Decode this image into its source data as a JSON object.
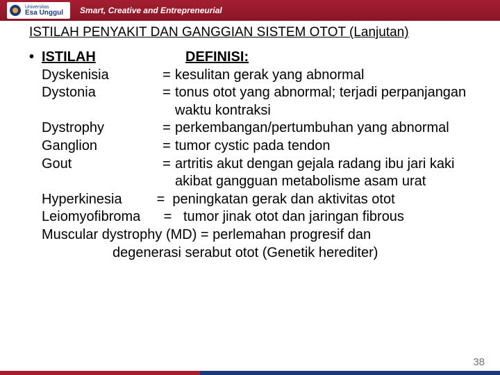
{
  "header": {
    "university_top": "Universitas",
    "university_name": "Esa Unggul",
    "tagline": "Smart, Creative and Entrepreneurial"
  },
  "title": "ISTILAH PENYAKIT DAN GANGGIAN SISTEM OTOT (Lanjutan)",
  "columns": {
    "term": "ISTILAH",
    "def": "DEFINISI:"
  },
  "rows": [
    {
      "term": "Dyskenisia",
      "def": "kesulitan gerak yang abnormal"
    },
    {
      "term": "Dystonia",
      "def": "tonus otot yang abnormal; terjadi perpanjangan waktu kontraksi"
    },
    {
      "term": "Dystrophy",
      "def": "perkembangan/pertumbuhan yang abnormal"
    },
    {
      "term": "Ganglion",
      "def": "tumor cystic pada tendon"
    },
    {
      "term": "Gout",
      "def": "artritis akut dengan gejala radang ibu jari kaki akibat gangguan metabolisme asam urat"
    }
  ],
  "freeform": [
    "Hyperkinesia         =  peningkatan gerak dan aktivitas otot",
    "Leiomyofibroma      =   tumor jinak otot dan jaringan fibrous",
    "Muscular dystrophy (MD) = perlemahan progresif dan"
  ],
  "freeform_cont": "degenerasi serabut otot (Genetik herediter)",
  "page_number": "38",
  "colors": {
    "header_bg": "#a31e2f",
    "accent_blue": "#1b3a7a",
    "page_num": "#6b7280"
  }
}
